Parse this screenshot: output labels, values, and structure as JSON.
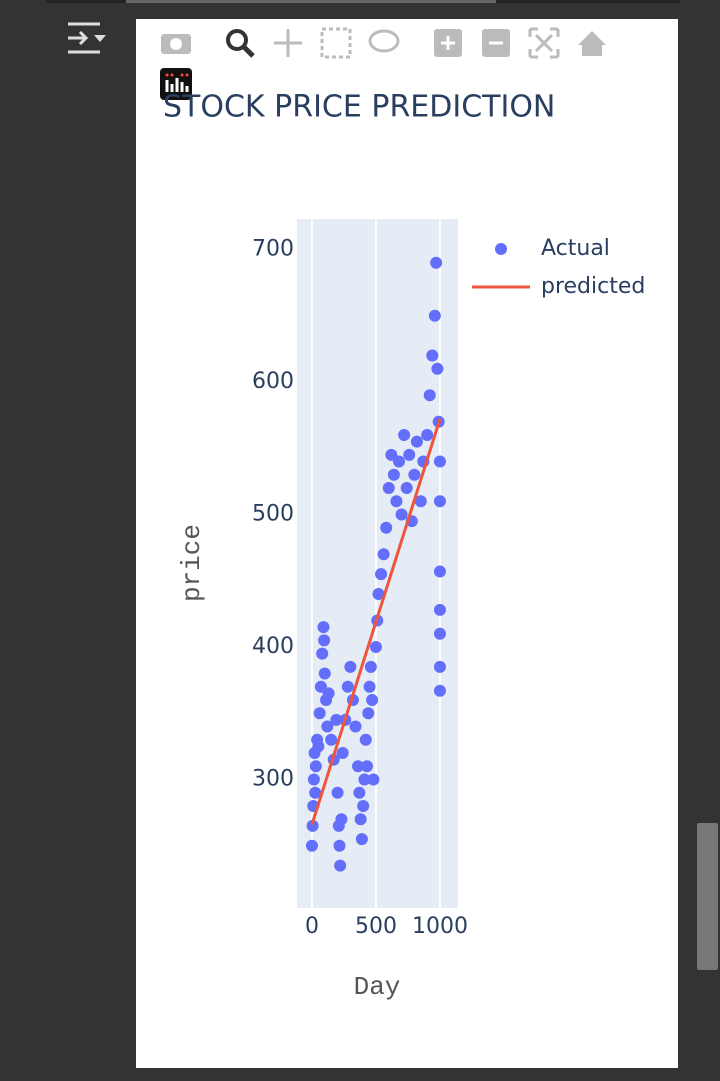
{
  "chart_data": {
    "type": "scatter",
    "title": "STOCK PRICE PREDICTION",
    "xlabel": "Day",
    "ylabel": "price",
    "xlim": [
      -117,
      1141
    ],
    "ylim": [
      203,
      723
    ],
    "xticks": [
      0,
      500,
      1000
    ],
    "yticks": [
      300,
      400,
      500,
      600,
      700
    ],
    "grid": true,
    "legend": "right",
    "series": [
      {
        "name": "Actual",
        "color": "#636efa",
        "mode": "markers",
        "x": [
          0,
          5,
          10,
          15,
          20,
          25,
          30,
          40,
          50,
          60,
          70,
          80,
          90,
          95,
          100,
          110,
          120,
          130,
          150,
          170,
          190,
          200,
          210,
          215,
          220,
          230,
          240,
          260,
          280,
          300,
          320,
          340,
          360,
          370,
          380,
          390,
          400,
          410,
          420,
          430,
          440,
          450,
          460,
          470,
          480,
          500,
          510,
          520,
          540,
          560,
          580,
          600,
          620,
          640,
          660,
          680,
          700,
          720,
          740,
          760,
          780,
          800,
          820,
          850,
          870,
          900,
          920,
          940,
          960,
          970,
          980,
          990,
          1000,
          1000,
          1000,
          1000,
          1000,
          1000,
          1000
        ],
        "values": [
          250,
          265,
          280,
          300,
          320,
          290,
          310,
          330,
          325,
          350,
          370,
          395,
          415,
          405,
          380,
          360,
          340,
          365,
          330,
          315,
          345,
          290,
          265,
          250,
          235,
          270,
          320,
          345,
          370,
          385,
          360,
          340,
          310,
          290,
          270,
          255,
          280,
          300,
          330,
          310,
          350,
          370,
          385,
          360,
          300,
          400,
          420,
          440,
          455,
          470,
          490,
          520,
          545,
          530,
          510,
          540,
          500,
          560,
          520,
          545,
          495,
          530,
          555,
          510,
          540,
          560,
          590,
          620,
          650,
          690,
          610,
          570,
          540,
          510,
          457,
          428,
          410,
          385,
          367
        ]
      },
      {
        "name": "predicted",
        "color": "#ef553b",
        "mode": "lines",
        "x": [
          0,
          1000
        ],
        "values": [
          266,
          572
        ]
      }
    ]
  }
}
